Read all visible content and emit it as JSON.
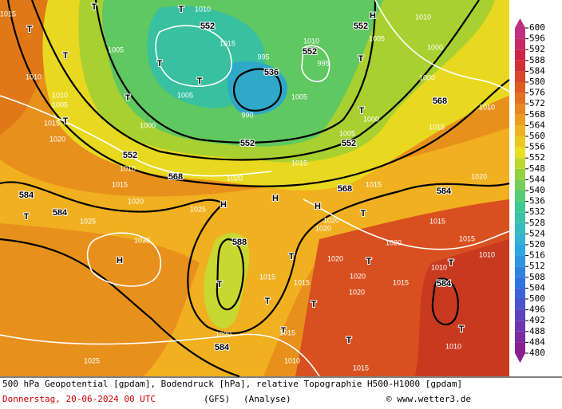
{
  "map": {
    "labels": [
      "552",
      "552",
      "552",
      "536",
      "552",
      "552",
      "552",
      "568",
      "568",
      "568",
      "584",
      "584",
      "584",
      "588",
      "584",
      "584",
      "H",
      "H",
      "H",
      "H",
      "H",
      "T",
      "T",
      "T",
      "T",
      "T",
      "T",
      "T",
      "T",
      "T",
      "T",
      "T",
      "T",
      "T",
      "T",
      "T",
      "T",
      "T",
      "T",
      "T",
      "T",
      "T",
      "1005",
      "1010",
      "1010",
      "1005",
      "1000",
      "1000",
      "1000",
      "1005",
      "1005",
      "1005",
      "1015",
      "1010",
      "1015",
      "1020",
      "1025",
      "1025",
      "1030",
      "1020",
      "1020",
      "1020",
      "1020",
      "1020",
      "1020",
      "1020",
      "1015",
      "1015",
      "1015",
      "1010",
      "1010",
      "1015",
      "1015",
      "1020",
      "1010",
      "1015",
      "1015",
      "1010",
      "1025",
      "1010",
      "1010",
      "1005",
      "1015",
      "1020",
      "1010",
      "1015",
      "1020",
      "1000",
      "1015",
      "1010",
      "995",
      "995",
      "990",
      "1015",
      "1015"
    ]
  },
  "colorbar": {
    "ticks": [
      480,
      484,
      488,
      492,
      496,
      500,
      504,
      508,
      512,
      516,
      520,
      524,
      528,
      532,
      536,
      540,
      544,
      548,
      552,
      556,
      560,
      564,
      568,
      572,
      576,
      580,
      584,
      588,
      592,
      596,
      600
    ]
  },
  "caption": {
    "line1": "500 hPa Geopotential [gpdam], Bodendruck [hPa], relative Topographie H500-H1000 [gpdam]",
    "date": "Donnerstag, 20-06-2024  00 UTC",
    "model": "(GFS)",
    "run": "(Analyse)",
    "credit": "© www.wetter3.de"
  }
}
